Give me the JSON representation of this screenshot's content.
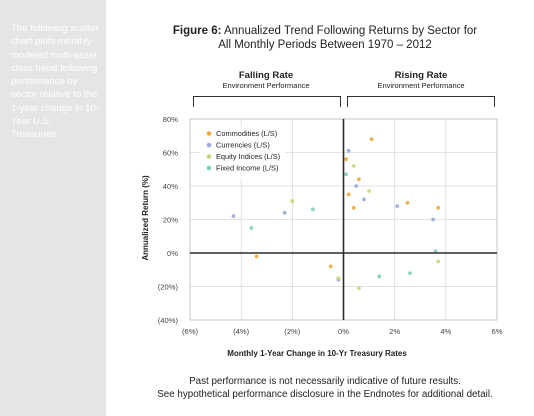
{
  "sidebar": {
    "text": "The following scatter chart plots monthly modeled multi-asset class trend following performance by sector relative to the 1-year change in 10-Year U.S. Treasuries."
  },
  "figure": {
    "label": "Figure 6:",
    "title_rest": "Annualized Trend Following Returns by Sector for",
    "title_line2": "All Monthly Periods Between 1970 – 2012"
  },
  "regions": {
    "falling": {
      "title": "Falling Rate",
      "subtitle": "Environment Performance"
    },
    "rising": {
      "title": "Rising Rate",
      "subtitle": "Environment Performance"
    }
  },
  "footer": {
    "line1": "Past performance is not necessarily indicative of future results.",
    "line2": "See hypothetical performance disclosure in the Endnotes for additional detail."
  },
  "colors": {
    "commodities": "#f2a93b",
    "currencies": "#9aa9d8",
    "equity": "#c9d77a",
    "fixed_income": "#7fcfb1"
  },
  "chart_data": {
    "type": "scatter",
    "xlabel": "Monthly 1-Year Change in 10-Yr Treasury Rates",
    "ylabel": "Annualized Return (%)",
    "xlim": [
      -6,
      6
    ],
    "ylim": [
      -40,
      80
    ],
    "x_ticks": [
      -6,
      -4,
      -2,
      0,
      2,
      4,
      6
    ],
    "x_tick_labels": [
      "(6%)",
      "(4%)",
      "(2%)",
      "0%",
      "2%",
      "4%",
      "6%"
    ],
    "y_ticks": [
      80,
      60,
      40,
      20,
      0,
      -20,
      -40
    ],
    "y_tick_labels": [
      "80%",
      "60%",
      "40%",
      "20%",
      "0%",
      "(20%)",
      "(40%)"
    ],
    "grid": true,
    "legend_position": "top-left",
    "series": [
      {
        "name": "Commodities (L/S)",
        "color": "#f2a93b",
        "points": [
          [
            0.1,
            56
          ],
          [
            1.1,
            68
          ],
          [
            0.6,
            44
          ],
          [
            0.2,
            35
          ],
          [
            -3.4,
            -2
          ],
          [
            3.7,
            27
          ],
          [
            0.4,
            27
          ],
          [
            -0.5,
            -8
          ],
          [
            2.5,
            30
          ]
        ]
      },
      {
        "name": "Currencies (L/S)",
        "color": "#9aa9d8",
        "points": [
          [
            -4.3,
            22
          ],
          [
            0.2,
            61
          ],
          [
            0.5,
            40
          ],
          [
            0.8,
            32
          ],
          [
            -0.2,
            -16
          ],
          [
            3.5,
            20
          ],
          [
            2.1,
            28
          ],
          [
            -2.3,
            24
          ]
        ]
      },
      {
        "name": "Equity Indices (L/S)",
        "color": "#c9d77a",
        "points": [
          [
            0.4,
            52
          ],
          [
            1.0,
            37
          ],
          [
            -0.2,
            -15
          ],
          [
            3.7,
            -5
          ],
          [
            -2.0,
            31
          ],
          [
            0.6,
            -21
          ]
        ]
      },
      {
        "name": "Fixed Income (L/S)",
        "color": "#7fcfb1",
        "points": [
          [
            0.1,
            47
          ],
          [
            -3.6,
            15
          ],
          [
            1.4,
            -14
          ],
          [
            3.6,
            1
          ],
          [
            -1.2,
            26
          ],
          [
            2.6,
            -12
          ]
        ]
      }
    ]
  }
}
